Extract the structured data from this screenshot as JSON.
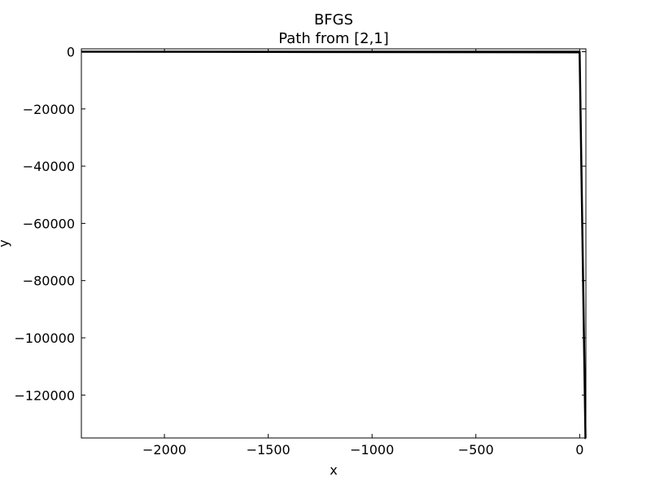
{
  "chart_data": {
    "type": "line",
    "title": "BFGS",
    "subtitle": "Path from [2,1]",
    "xlabel": "x",
    "ylabel": "y",
    "xlim": [
      -2400,
      30
    ],
    "ylim": [
      -135000,
      1000
    ],
    "xticks": [
      -2000,
      -1500,
      -1000,
      -500,
      0
    ],
    "xtick_labels": [
      "−2000",
      "−1500",
      "−1000",
      "−500",
      "0"
    ],
    "yticks": [
      0,
      -20000,
      -40000,
      -60000,
      -80000,
      -100000,
      -120000
    ],
    "ytick_labels": [
      "0",
      "−20000",
      "−40000",
      "−60000",
      "−80000",
      "−100000",
      "−120000"
    ],
    "grid": false,
    "series": [
      {
        "color": "#000000",
        "x": [
          2,
          -2400,
          0,
          28,
          30
        ],
        "y": [
          1,
          0,
          -200,
          -135000,
          -135000
        ]
      }
    ]
  }
}
